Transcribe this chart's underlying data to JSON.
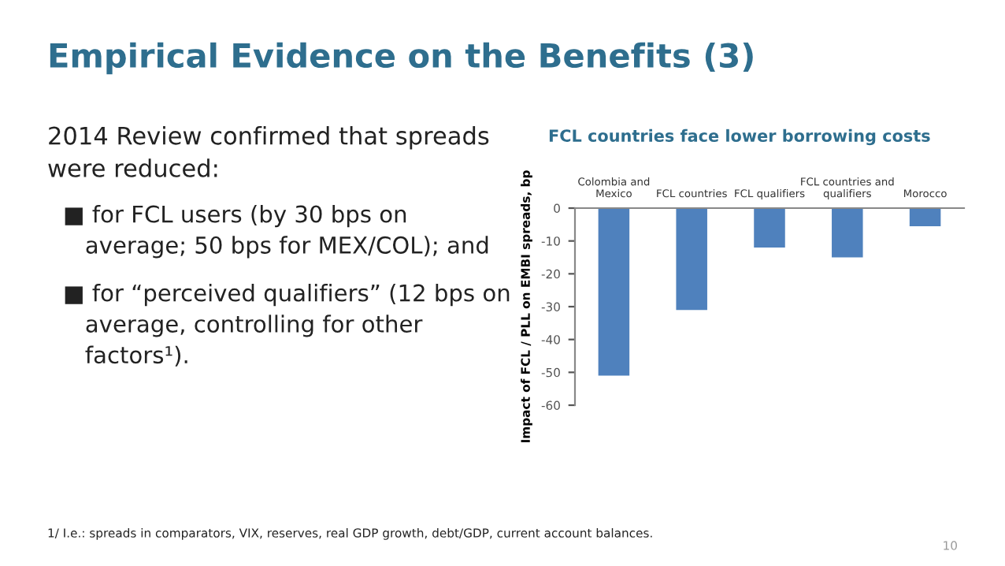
{
  "chart_data": {
    "type": "bar",
    "title": "Empirical Evidence on the Benefits (3)",
    "subtitle": "FCL countries face lower borrowing costs",
    "ylabel": "Impact of FCL / PLL on EMBI spreads, bp",
    "categories": [
      "Colombia and\nMexico",
      "FCL countries",
      "FCL qualifiers",
      "FCL countries and\nqualifiers",
      "Morocco"
    ],
    "values": [
      -51,
      -31,
      -12,
      -15,
      -5.5
    ],
    "color": "#4f81bd",
    "ylim": [
      -60,
      0
    ],
    "yticks": [
      0,
      -10,
      -20,
      -30,
      -40,
      -50,
      -60
    ],
    "grid": false,
    "legend": false,
    "annotations": [
      "2014 Review confirmed that spreads\nwere reduced:",
      "■ for FCL users (by 30 bps on\n   average; 50 bps for MEX/COL); and",
      "■ for “perceived qualifiers” (12 bps on\n   average, controlling for other\n   factors¹).",
      "1/ I.e.: spreads in comparators, VIX, reserves, real GDP growth, debt/GDP, current account balances.",
      "10"
    ]
  }
}
